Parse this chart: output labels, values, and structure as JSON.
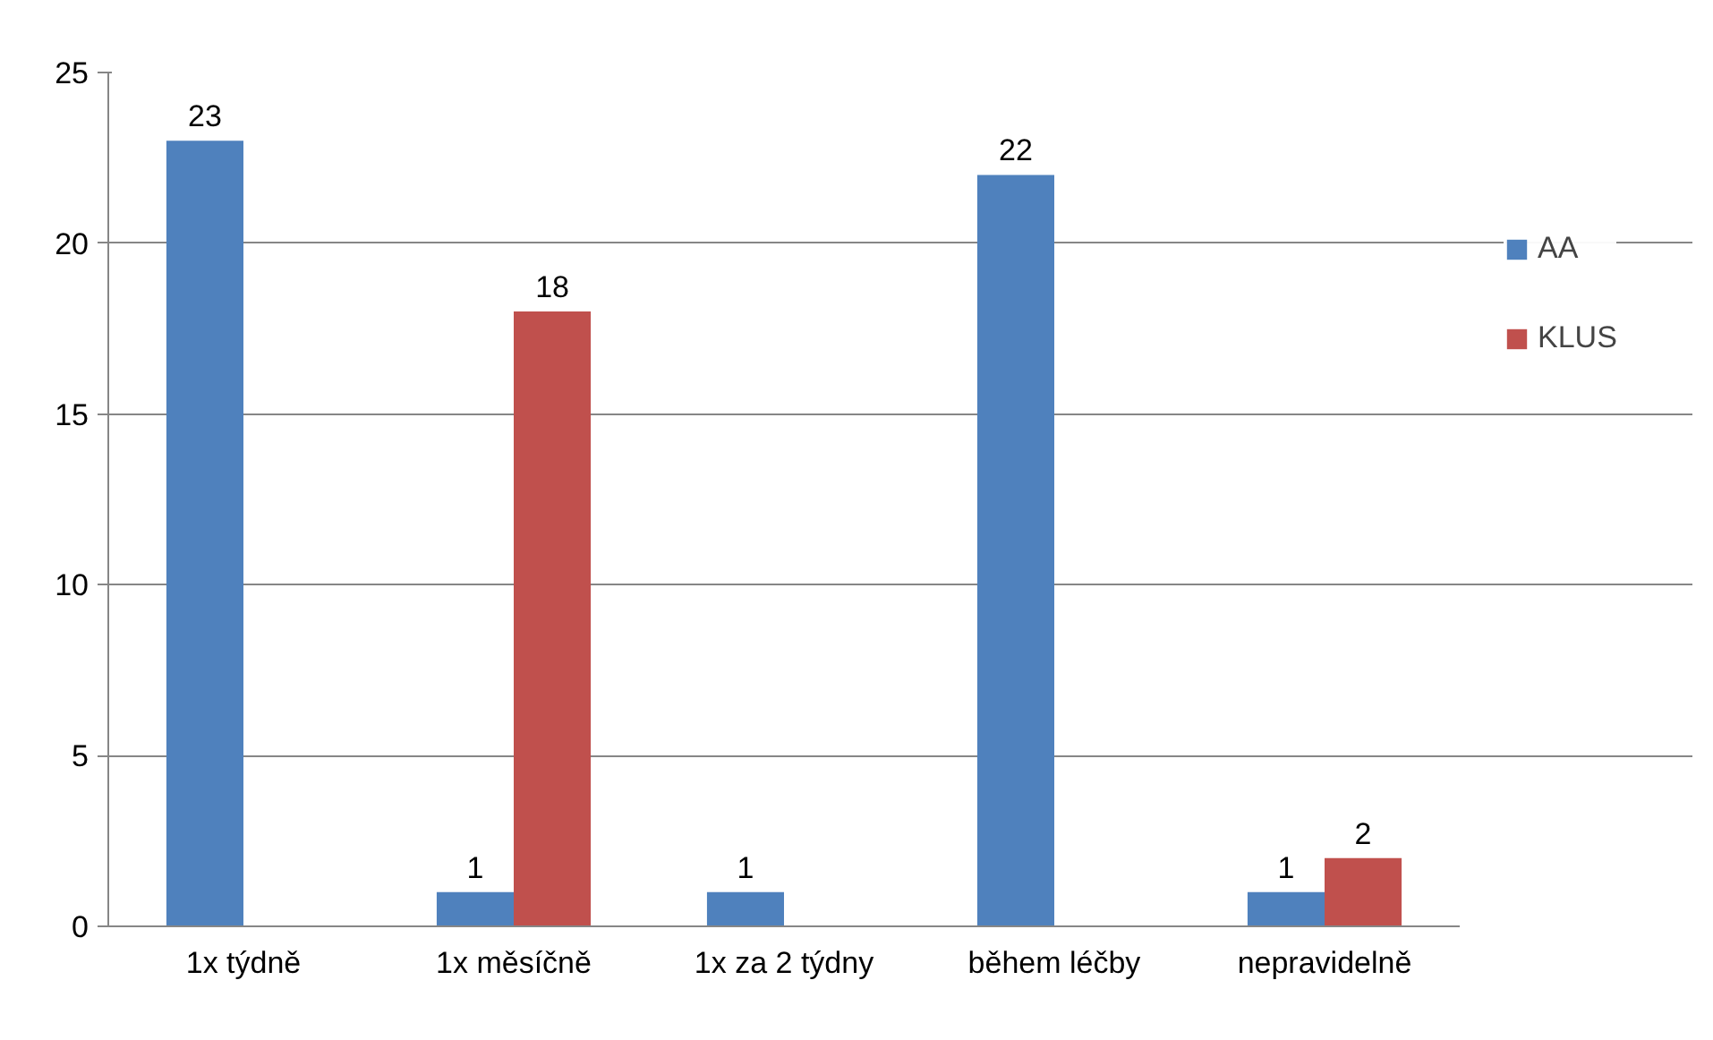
{
  "chart_data": {
    "type": "bar",
    "categories": [
      "1x týdně",
      "1x měsíčně",
      "1x za 2 týdny",
      "během léčby",
      "nepravidelně"
    ],
    "series": [
      {
        "name": "AA",
        "color": "#4f81bd",
        "values": [
          23,
          1,
          1,
          22,
          1
        ]
      },
      {
        "name": "KLUS",
        "color": "#c0504d",
        "values": [
          null,
          18,
          null,
          null,
          2
        ]
      }
    ],
    "ylim": [
      0,
      25
    ],
    "yticks": [
      0,
      5,
      10,
      15,
      20,
      25
    ],
    "grid": "y",
    "legend": "right",
    "data_labels": true
  }
}
